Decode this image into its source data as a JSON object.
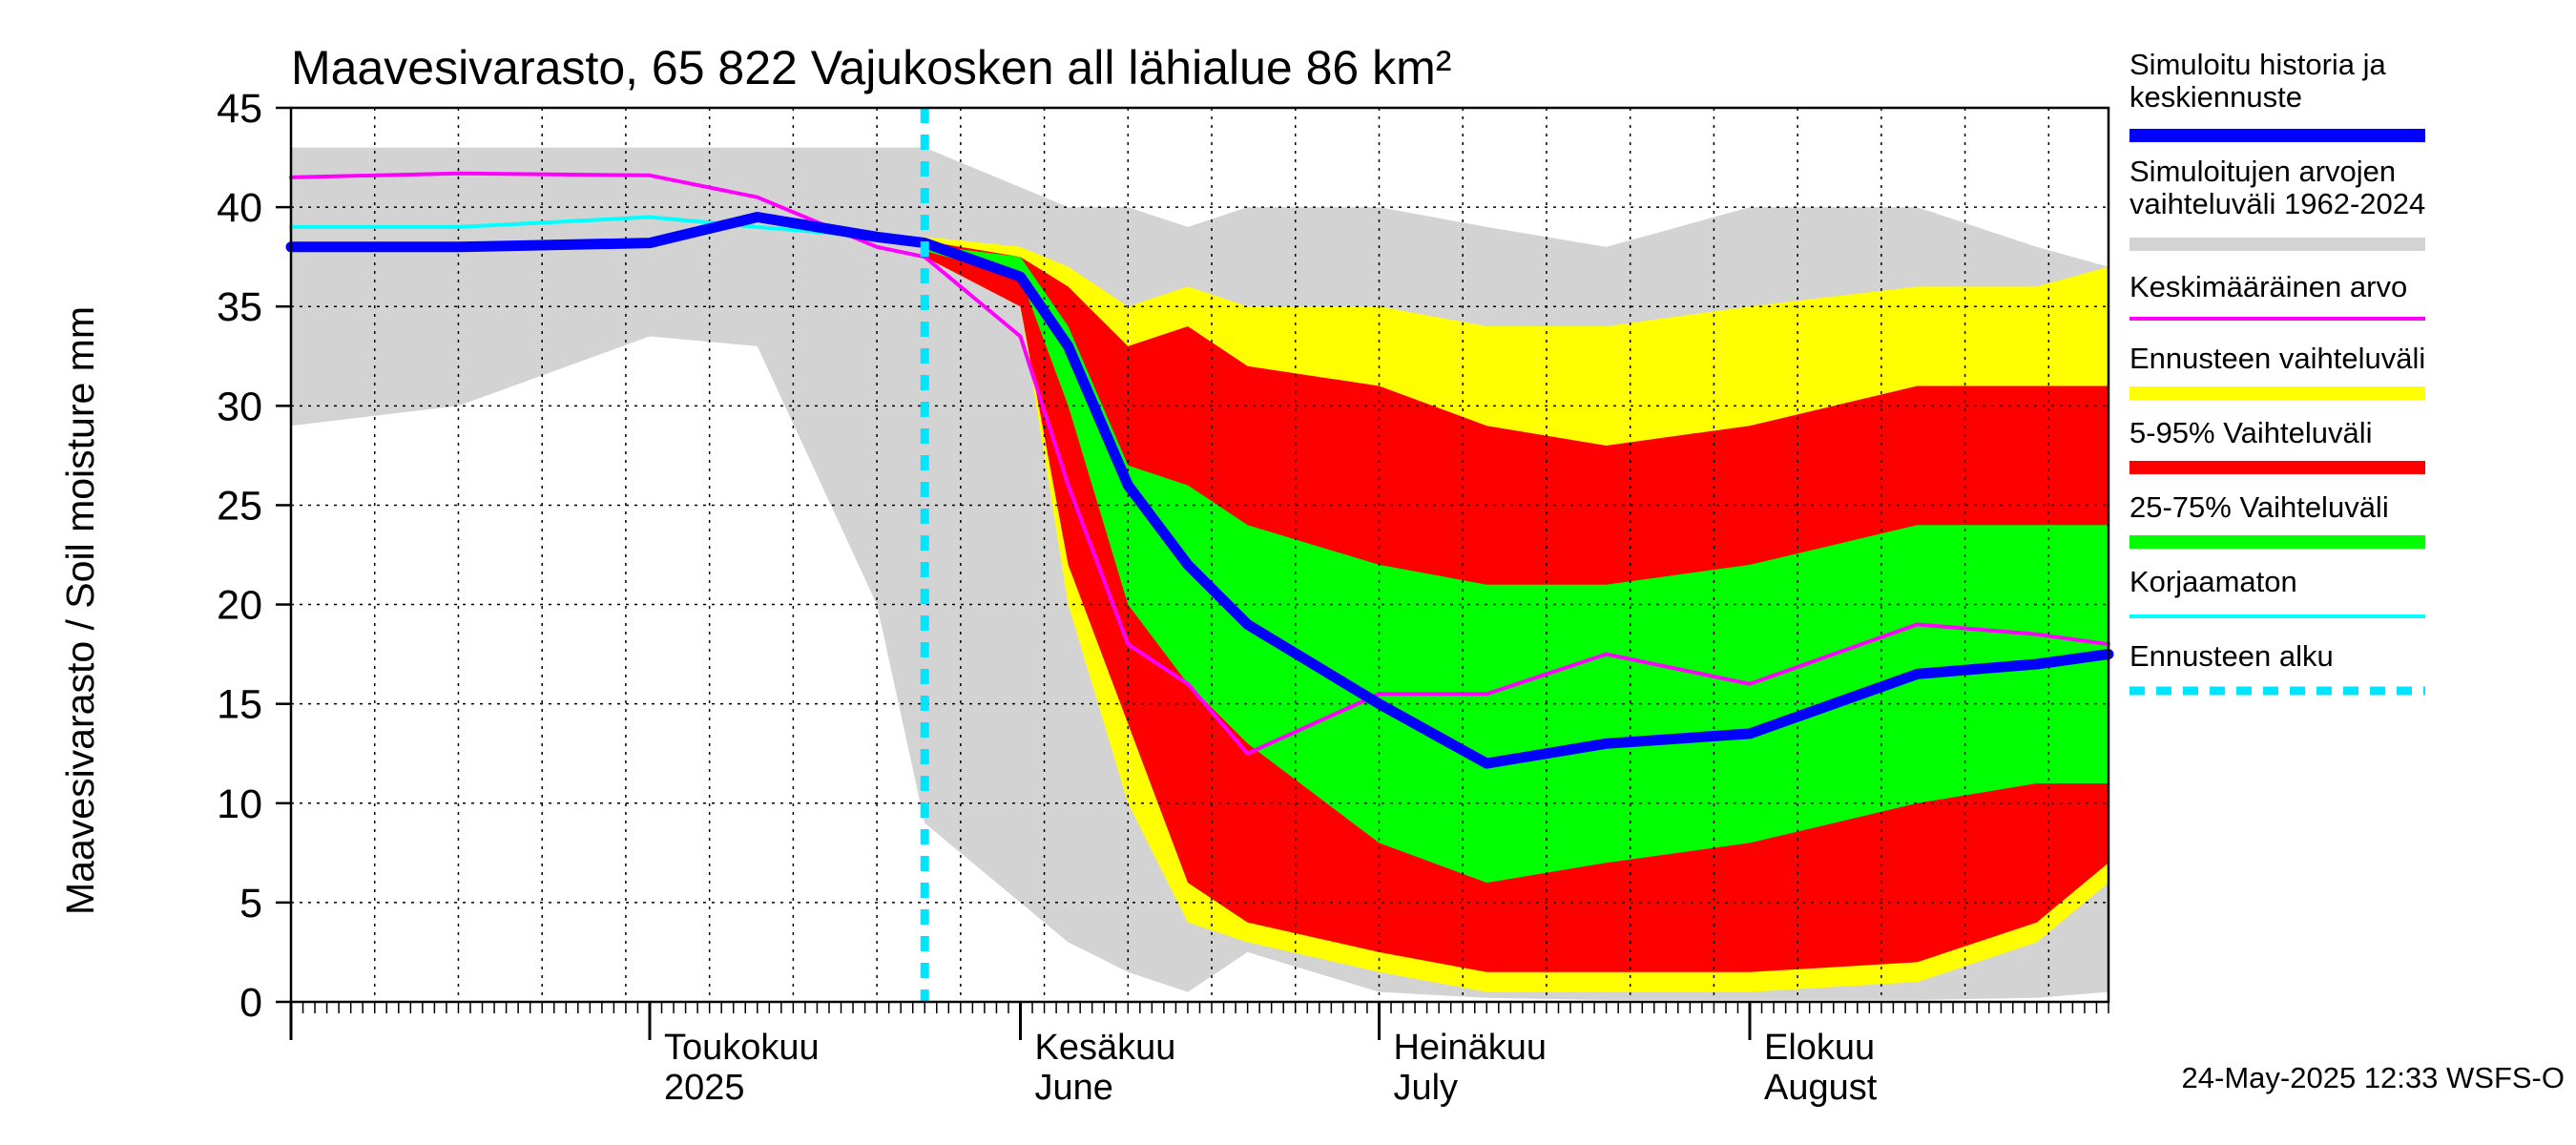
{
  "chart_data": {
    "type": "area",
    "title": "Maavesivarasto, 65 822 Vajukosken all lähialue 86 km²",
    "ylabel": "Maavesivarasto / Soil moisture   mm",
    "ylim": [
      0,
      45
    ],
    "yticks": [
      0,
      5,
      10,
      15,
      20,
      25,
      30,
      35,
      40,
      45
    ],
    "xlim": [
      "2025-04-01",
      "2025-08-31"
    ],
    "forecast_start": "2025-05-24",
    "month_labels": [
      {
        "date": "2025-05-01",
        "fi": "Toukokuu",
        "en": "2025"
      },
      {
        "date": "2025-06-01",
        "fi": "Kesäkuu",
        "en": "June"
      },
      {
        "date": "2025-07-01",
        "fi": "Heinäkuu",
        "en": "July"
      },
      {
        "date": "2025-08-01",
        "fi": "Elokuu",
        "en": "August"
      }
    ],
    "x": [
      "2025-04-01",
      "2025-04-15",
      "2025-05-01",
      "2025-05-10",
      "2025-05-20",
      "2025-05-24",
      "2025-06-01",
      "2025-06-05",
      "2025-06-10",
      "2025-06-15",
      "2025-06-20",
      "2025-07-01",
      "2025-07-10",
      "2025-07-20",
      "2025-08-01",
      "2025-08-15",
      "2025-08-25",
      "2025-08-31"
    ],
    "series": [
      {
        "name": "Simuloitujen arvojen vaihteluväli 1962-2024",
        "color": "#d3d3d3",
        "low": [
          29,
          30,
          33.5,
          33,
          20,
          9,
          5,
          3,
          1.5,
          0.5,
          2.5,
          0.5,
          0.2,
          0.1,
          0.1,
          0.1,
          0.2,
          0.5
        ],
        "high": [
          43,
          43,
          43,
          43,
          43,
          43,
          41,
          40,
          40,
          39,
          40,
          40,
          39,
          38,
          40,
          40,
          38,
          37
        ]
      },
      {
        "name": "Ennusteen vaihteluväli",
        "color": "#ffff00",
        "low": [
          null,
          null,
          null,
          null,
          null,
          37.5,
          35,
          20,
          10,
          4,
          3,
          1.5,
          0.5,
          0.5,
          0.5,
          1,
          3,
          6
        ],
        "high": [
          null,
          null,
          null,
          null,
          null,
          38.5,
          38,
          37,
          35,
          36,
          35,
          35,
          34,
          34,
          35,
          36,
          36,
          37
        ]
      },
      {
        "name": "5-95% Vaihteluväli",
        "color": "#ff0000",
        "low": [
          null,
          null,
          null,
          null,
          null,
          37.5,
          35,
          22,
          14,
          6,
          4,
          2.5,
          1.5,
          1.5,
          1.5,
          2,
          4,
          7
        ],
        "high": [
          null,
          null,
          null,
          null,
          null,
          38.3,
          37.5,
          36,
          33,
          34,
          32,
          31,
          29,
          28,
          29,
          31,
          31,
          31
        ]
      },
      {
        "name": "25-75% Vaihteluväli",
        "color": "#00ff00",
        "low": [
          null,
          null,
          null,
          null,
          null,
          37.8,
          36.5,
          30,
          20,
          16,
          13,
          8,
          6,
          7,
          8,
          10,
          11,
          11
        ],
        "high": [
          null,
          null,
          null,
          null,
          null,
          38.1,
          37.5,
          34,
          27,
          26,
          24,
          22,
          21,
          21,
          22,
          24,
          24,
          24
        ]
      },
      {
        "name": "Keskimääräinen arvo",
        "color": "#ff00ff",
        "values": [
          41.5,
          41.7,
          41.6,
          40.5,
          38,
          37.5,
          33.5,
          26,
          18,
          16,
          12.5,
          15.5,
          15.5,
          17.5,
          16,
          19,
          18.5,
          18
        ]
      },
      {
        "name": "Korjaamaton",
        "color": "#00ffff",
        "values": [
          39,
          39,
          39.5,
          39,
          38.5,
          38.2,
          null,
          null,
          null,
          null,
          null,
          null,
          null,
          null,
          null,
          null,
          null,
          null
        ]
      },
      {
        "name": "Simuloitu historia ja keskiennuste",
        "color": "#0000ff",
        "values": [
          38,
          38,
          38.2,
          39.5,
          38.5,
          38.2,
          36.5,
          33,
          26,
          22,
          19,
          15,
          12,
          13,
          13.5,
          16.5,
          17,
          17.5
        ]
      }
    ],
    "legend": {
      "placement": "right",
      "entries": [
        {
          "label": "Simuloitu historia ja keskiennuste",
          "color": "#0000ff",
          "style": "thick"
        },
        {
          "label": "Simuloitujen arvojen vaihteluväli 1962-2024",
          "color": "#d3d3d3",
          "style": "thick"
        },
        {
          "label": "Keskimääräinen arvo",
          "color": "#ff00ff",
          "style": "thin"
        },
        {
          "label": "Ennusteen vaihteluväli",
          "color": "#ffff00",
          "style": "thick"
        },
        {
          "label": "5-95% Vaihteluväli",
          "color": "#ff0000",
          "style": "thick"
        },
        {
          "label": "25-75% Vaihteluväli",
          "color": "#00ff00",
          "style": "thick"
        },
        {
          "label": "Korjaamaton",
          "color": "#00ffff",
          "style": "thin"
        },
        {
          "label": "Ennusteen alku",
          "color": "#00e5ff",
          "style": "dashed"
        }
      ]
    },
    "footer": "24-May-2025 12:33 WSFS-O"
  }
}
